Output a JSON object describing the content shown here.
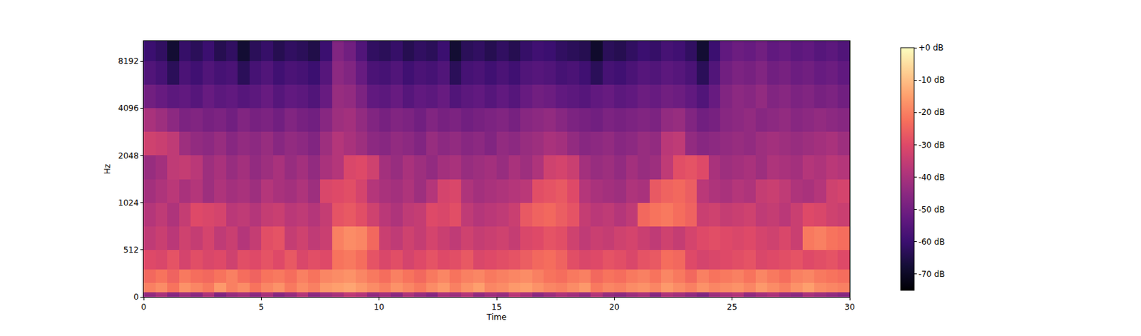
{
  "chart_data": {
    "type": "heatmap",
    "x_label": "Time",
    "y_label": "Hz",
    "log": "y",
    "xlim": [
      0,
      30
    ],
    "xticks": [
      0,
      5,
      10,
      15,
      20,
      25,
      30
    ],
    "ylim": [
      0,
      11025
    ],
    "yticks": [
      0,
      512,
      1024,
      2048,
      4096,
      8192
    ],
    "time_bins": [
      0,
      0.5,
      1,
      1.5,
      2,
      2.5,
      3,
      3.5,
      4,
      4.5,
      5,
      5.5,
      6,
      6.5,
      7,
      7.5,
      8,
      8.5,
      9,
      9.5,
      10,
      10.5,
      11,
      11.5,
      12,
      12.5,
      13,
      13.5,
      14,
      14.5,
      15,
      15.5,
      16,
      16.5,
      17,
      17.5,
      18,
      18.5,
      19,
      19.5,
      20,
      20.5,
      21,
      21.5,
      22,
      22.5,
      23,
      23.5,
      24,
      24.5,
      25,
      25.5,
      26,
      26.5,
      27,
      27.5,
      28,
      28.5,
      29,
      29.5,
      30
    ],
    "freq_bins": [
      0,
      50,
      150,
      300,
      512,
      724,
      1024,
      1448,
      2048,
      2896,
      4096,
      5793,
      8192,
      11025
    ],
    "cells": [
      [
        -44,
        -40,
        -46,
        -42,
        -45,
        -39,
        -47,
        -43,
        -41,
        -45,
        -40,
        -46,
        -43,
        -38,
        -45,
        -42,
        -40,
        -36,
        -38,
        -44,
        -41,
        -45,
        -39,
        -43,
        -46,
        -40,
        -42,
        -38,
        -44,
        -41,
        -43,
        -37,
        -40,
        -45,
        -42,
        -39,
        -41,
        -44,
        -38,
        -43,
        -45,
        -42,
        -40,
        -46,
        -39,
        -41,
        -44,
        -47,
        -42,
        -40,
        -38,
        -44,
        -41,
        -39,
        -43,
        -45,
        -40,
        -42,
        -44,
        -46
      ],
      [
        -20,
        -18,
        -22,
        -17,
        -19,
        -21,
        -16,
        -20,
        -18,
        -22,
        -19,
        -17,
        -21,
        -18,
        -20,
        -16,
        -15,
        -14,
        -16,
        -18,
        -20,
        -17,
        -19,
        -21,
        -18,
        -16,
        -20,
        -17,
        -15,
        -19,
        -18,
        -16,
        -15,
        -17,
        -19,
        -20,
        -18,
        -16,
        -21,
        -19,
        -20,
        -18,
        -17,
        -19,
        -16,
        -18,
        -20,
        -17,
        -19,
        -18,
        -17,
        -19,
        -16,
        -18,
        -20,
        -17,
        -15,
        -18,
        -19,
        -20
      ],
      [
        -24,
        -22,
        -25,
        -21,
        -23,
        -24,
        -22,
        -20,
        -23,
        -25,
        -22,
        -21,
        -23,
        -20,
        -22,
        -19,
        -18,
        -17,
        -19,
        -21,
        -23,
        -20,
        -22,
        -24,
        -21,
        -19,
        -22,
        -20,
        -19,
        -21,
        -20,
        -19,
        -18,
        -20,
        -22,
        -23,
        -21,
        -20,
        -24,
        -22,
        -23,
        -21,
        -20,
        -22,
        -19,
        -21,
        -24,
        -20,
        -22,
        -21,
        -20,
        -22,
        -19,
        -21,
        -23,
        -20,
        -19,
        -21,
        -22,
        -23
      ],
      [
        -30,
        -31,
        -28,
        -32,
        -29,
        -31,
        -30,
        -33,
        -29,
        -30,
        -28,
        -30,
        -27,
        -31,
        -29,
        -30,
        -22,
        -21,
        -23,
        -28,
        -31,
        -29,
        -32,
        -30,
        -28,
        -30,
        -29,
        -27,
        -31,
        -30,
        -29,
        -28,
        -26,
        -24,
        -23,
        -25,
        -29,
        -31,
        -30,
        -28,
        -29,
        -31,
        -28,
        -27,
        -23,
        -24,
        -30,
        -32,
        -31,
        -30,
        -29,
        -28,
        -31,
        -30,
        -29,
        -28,
        -30,
        -29,
        -28,
        -30
      ],
      [
        -36,
        -34,
        -37,
        -33,
        -35,
        -32,
        -36,
        -34,
        -38,
        -35,
        -29,
        -28,
        -35,
        -33,
        -36,
        -34,
        -20,
        -18,
        -19,
        -24,
        -34,
        -36,
        -33,
        -35,
        -32,
        -34,
        -36,
        -33,
        -35,
        -34,
        -33,
        -35,
        -31,
        -30,
        -28,
        -29,
        -33,
        -36,
        -34,
        -35,
        -33,
        -32,
        -34,
        -36,
        -33,
        -35,
        -32,
        -30,
        -29,
        -30,
        -31,
        -30,
        -32,
        -33,
        -31,
        -34,
        -21,
        -20,
        -22,
        -23
      ],
      [
        -38,
        -36,
        -39,
        -35,
        -30,
        -31,
        -32,
        -37,
        -36,
        -38,
        -35,
        -34,
        -37,
        -36,
        -38,
        -35,
        -28,
        -27,
        -29,
        -33,
        -37,
        -39,
        -36,
        -35,
        -30,
        -31,
        -29,
        -36,
        -38,
        -37,
        -36,
        -34,
        -27,
        -25,
        -24,
        -26,
        -28,
        -35,
        -37,
        -36,
        -38,
        -36,
        -24,
        -22,
        -21,
        -23,
        -25,
        -34,
        -33,
        -35,
        -34,
        -33,
        -36,
        -35,
        -37,
        -34,
        -30,
        -31,
        -33,
        -34
      ],
      [
        -41,
        -39,
        -37,
        -40,
        -38,
        -42,
        -39,
        -41,
        -40,
        -42,
        -38,
        -40,
        -41,
        -39,
        -42,
        -31,
        -30,
        -29,
        -32,
        -38,
        -40,
        -41,
        -39,
        -42,
        -38,
        -32,
        -31,
        -39,
        -41,
        -40,
        -39,
        -38,
        -37,
        -29,
        -28,
        -27,
        -30,
        -38,
        -40,
        -41,
        -42,
        -39,
        -40,
        -27,
        -25,
        -24,
        -26,
        -37,
        -39,
        -40,
        -38,
        -39,
        -35,
        -34,
        -36,
        -39,
        -40,
        -38,
        -33,
        -32
      ],
      [
        -43,
        -41,
        -36,
        -35,
        -37,
        -42,
        -40,
        -43,
        -41,
        -44,
        -42,
        -40,
        -43,
        -41,
        -44,
        -40,
        -38,
        -31,
        -30,
        -33,
        -41,
        -43,
        -40,
        -42,
        -44,
        -41,
        -40,
        -43,
        -42,
        -41,
        -43,
        -40,
        -42,
        -39,
        -33,
        -32,
        -34,
        -41,
        -43,
        -42,
        -44,
        -41,
        -43,
        -42,
        -36,
        -29,
        -28,
        -30,
        -40,
        -42,
        -41,
        -40,
        -42,
        -39,
        -40,
        -41,
        -38,
        -39,
        -37,
        -38
      ],
      [
        -33,
        -34,
        -36,
        -42,
        -44,
        -45,
        -43,
        -46,
        -44,
        -45,
        -43,
        -46,
        -44,
        -45,
        -47,
        -42,
        -38,
        -40,
        -42,
        -45,
        -46,
        -44,
        -45,
        -47,
        -43,
        -45,
        -44,
        -46,
        -45,
        -47,
        -44,
        -45,
        -43,
        -42,
        -40,
        -41,
        -44,
        -46,
        -45,
        -44,
        -46,
        -45,
        -43,
        -44,
        -37,
        -36,
        -44,
        -46,
        -45,
        -44,
        -43,
        -44,
        -42,
        -41,
        -42,
        -43,
        -42,
        -41,
        -40,
        -42
      ],
      [
        -40,
        -42,
        -45,
        -48,
        -47,
        -49,
        -48,
        -50,
        -47,
        -49,
        -48,
        -50,
        -47,
        -49,
        -50,
        -46,
        -42,
        -41,
        -44,
        -47,
        -49,
        -47,
        -48,
        -50,
        -47,
        -49,
        -48,
        -50,
        -49,
        -48,
        -47,
        -49,
        -46,
        -45,
        -44,
        -46,
        -48,
        -49,
        -50,
        -48,
        -49,
        -48,
        -47,
        -48,
        -44,
        -43,
        -47,
        -50,
        -49,
        -46,
        -45,
        -44,
        -46,
        -45,
        -44,
        -46,
        -45,
        -44,
        -45,
        -46
      ],
      [
        -50,
        -52,
        -54,
        -53,
        -55,
        -52,
        -54,
        -53,
        -55,
        -54,
        -52,
        -55,
        -53,
        -54,
        -56,
        -52,
        -43,
        -44,
        -48,
        -53,
        -54,
        -52,
        -55,
        -53,
        -54,
        -52,
        -56,
        -54,
        -53,
        -55,
        -53,
        -55,
        -52,
        -50,
        -51,
        -53,
        -54,
        -55,
        -53,
        -52,
        -54,
        -53,
        -51,
        -52,
        -50,
        -51,
        -53,
        -56,
        -52,
        -47,
        -45,
        -46,
        -44,
        -47,
        -46,
        -48,
        -47,
        -49,
        -48,
        -50
      ],
      [
        -56,
        -58,
        -63,
        -57,
        -59,
        -56,
        -58,
        -57,
        -63,
        -58,
        -56,
        -59,
        -57,
        -58,
        -60,
        -55,
        -45,
        -47,
        -52,
        -57,
        -58,
        -56,
        -59,
        -57,
        -58,
        -56,
        -63,
        -58,
        -57,
        -59,
        -57,
        -59,
        -56,
        -55,
        -56,
        -58,
        -57,
        -59,
        -63,
        -58,
        -59,
        -57,
        -55,
        -56,
        -54,
        -55,
        -57,
        -63,
        -56,
        -50,
        -48,
        -49,
        -47,
        -50,
        -49,
        -51,
        -50,
        -52,
        -51,
        -53
      ],
      [
        -60,
        -62,
        -68,
        -61,
        -63,
        -60,
        -64,
        -62,
        -68,
        -63,
        -61,
        -64,
        -62,
        -63,
        -65,
        -60,
        -47,
        -50,
        -56,
        -62,
        -63,
        -61,
        -64,
        -62,
        -63,
        -60,
        -68,
        -63,
        -62,
        -64,
        -62,
        -64,
        -61,
        -59,
        -60,
        -62,
        -63,
        -64,
        -69,
        -63,
        -64,
        -62,
        -60,
        -61,
        -58,
        -59,
        -62,
        -68,
        -60,
        -53,
        -51,
        -52,
        -50,
        -53,
        -52,
        -54,
        -53,
        -55,
        -54,
        -56
      ]
    ],
    "color_range": [
      -75,
      0
    ],
    "color_ticks": [
      {
        "value": 0,
        "label": "+0 dB"
      },
      {
        "value": -10,
        "label": "-10 dB"
      },
      {
        "value": -20,
        "label": "-20 dB"
      },
      {
        "value": -30,
        "label": "-30 dB"
      },
      {
        "value": -40,
        "label": "-40 dB"
      },
      {
        "value": -50,
        "label": "-50 dB"
      },
      {
        "value": -60,
        "label": "-60 dB"
      },
      {
        "value": -70,
        "label": "-70 dB"
      }
    ]
  }
}
